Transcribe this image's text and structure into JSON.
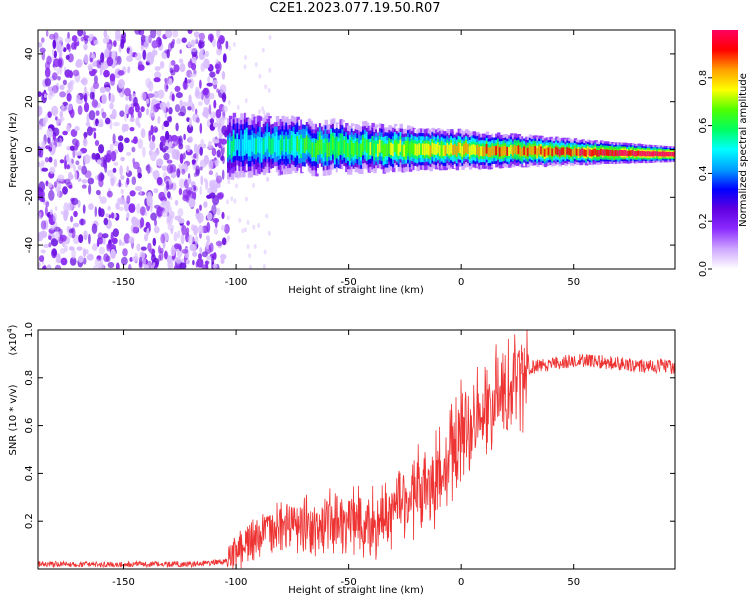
{
  "title": "C2E1.2023.077.19.50.R07",
  "chart_data": [
    {
      "type": "heatmap",
      "name": "spectrogram",
      "xlabel": "Height of straight line (km)",
      "ylabel": "Frequency (Hz)",
      "xlim": [
        -188,
        95
      ],
      "ylim": [
        -50,
        50
      ],
      "x_ticks": [
        "-150",
        "-100",
        "-50",
        "0",
        "50"
      ],
      "x_tick_values": [
        -150,
        -100,
        -50,
        0,
        50
      ],
      "y_ticks": [
        "40",
        "20",
        "0",
        "-20",
        "-40"
      ],
      "y_tick_values": [
        40,
        20,
        0,
        -20,
        -40
      ],
      "noise_region_x": [
        -188,
        -104
      ],
      "signal_band": {
        "x_start": -104,
        "x_end": 95,
        "center_freq_start": 2,
        "center_freq_end": -2,
        "half_width_start": 8,
        "half_width_end": 2
      },
      "colorbar": {
        "label": "Normalized spectral amplitude",
        "range": [
          0,
          1
        ],
        "ticks": [
          "0.0",
          "0.2",
          "0.4",
          "0.6",
          "0.8"
        ],
        "tick_values": [
          0,
          0.2,
          0.4,
          0.6,
          0.8
        ],
        "colors": [
          "#ffffff",
          "#cfa8ff",
          "#8c2cff",
          "#6000e0",
          "#0000ff",
          "#00a0ff",
          "#00ffff",
          "#00ff60",
          "#50ff00",
          "#ffff00",
          "#ffa000",
          "#ff0000",
          "#ff0060"
        ]
      }
    },
    {
      "type": "line",
      "name": "snr",
      "xlabel": "Height of straight line (km)",
      "ylabel": "SNR (10 * v/v)",
      "scale_label": "(x10",
      "scale_exponent": "4",
      "scale_close": ")",
      "xlim": [
        -188,
        95
      ],
      "ylim": [
        0,
        1
      ],
      "x_ticks": [
        "-150",
        "-100",
        "-50",
        "0",
        "50"
      ],
      "x_tick_values": [
        -150,
        -100,
        -50,
        0,
        50
      ],
      "y_ticks": [
        "0.2",
        "0.4",
        "0.6",
        "0.8",
        "1.0"
      ],
      "y_tick_values": [
        0.2,
        0.4,
        0.6,
        0.8,
        1.0
      ],
      "color": "#ee3333",
      "series": [
        {
          "name": "SNR",
          "x": [
            -188,
            -120,
            -105,
            -100,
            -95,
            -90,
            -80,
            -70,
            -60,
            -50,
            -40,
            -30,
            -20,
            -10,
            -5,
            0,
            5,
            10,
            15,
            20,
            25,
            30,
            40,
            50,
            60,
            70,
            80,
            90,
            95
          ],
          "values": [
            0.02,
            0.02,
            0.03,
            0.06,
            0.1,
            0.14,
            0.17,
            0.18,
            0.19,
            0.2,
            0.22,
            0.25,
            0.3,
            0.35,
            0.45,
            0.55,
            0.62,
            0.66,
            0.7,
            0.76,
            0.8,
            0.84,
            0.86,
            0.87,
            0.87,
            0.86,
            0.85,
            0.85,
            0.84
          ]
        }
      ]
    }
  ]
}
